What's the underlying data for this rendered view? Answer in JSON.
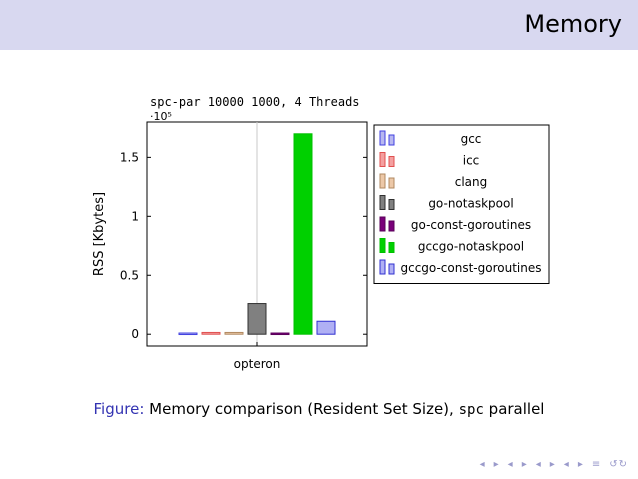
{
  "slide": {
    "title": "Memory"
  },
  "caption": {
    "label": "Figure:",
    "text": "Memory comparison (Resident Set Size),",
    "mono": "spc",
    "tail": "parallel"
  },
  "nav": [
    "◂",
    "▸",
    "◂",
    "▸",
    "◂",
    "▸",
    "◂",
    "▸",
    "≡",
    "↺↻"
  ],
  "chart_data": {
    "type": "bar",
    "title": "spc-par 10000 1000, 4 Threads",
    "ylabel": "RSS [Kbytes]",
    "xlabel": "",
    "scale_label": "·10⁵",
    "categories": [
      "opteron"
    ],
    "ylim": [
      -0.1,
      1.8
    ],
    "yticks": [
      0,
      0.5,
      1,
      1.5
    ],
    "ytick_labels": [
      "0",
      "0.5",
      "1",
      "1.5"
    ],
    "grid": "vertical line at category",
    "legend_position": "right",
    "series": [
      {
        "name": "gcc",
        "values": [
          0.01
        ],
        "color": "#4040e0",
        "fill": "#b8b8f0"
      },
      {
        "name": "icc",
        "values": [
          0.015
        ],
        "color": "#e05050",
        "fill": "#f4a0a0"
      },
      {
        "name": "clang",
        "values": [
          0.015
        ],
        "color": "#b08860",
        "fill": "#ecc8a8"
      },
      {
        "name": "go-notaskpool",
        "values": [
          0.26
        ],
        "color": "#303030",
        "fill": "#808080"
      },
      {
        "name": "go-const-goroutines",
        "values": [
          0.01
        ],
        "color": "#5a005a",
        "fill": "#7a007a"
      },
      {
        "name": "gccgo-notaskpool",
        "values": [
          1.7
        ],
        "color": "#00c000",
        "fill": "#00d000"
      },
      {
        "name": "gccgo-const-goroutines",
        "values": [
          0.11
        ],
        "color": "#3030d0",
        "fill": "#b0b0f4"
      }
    ]
  }
}
